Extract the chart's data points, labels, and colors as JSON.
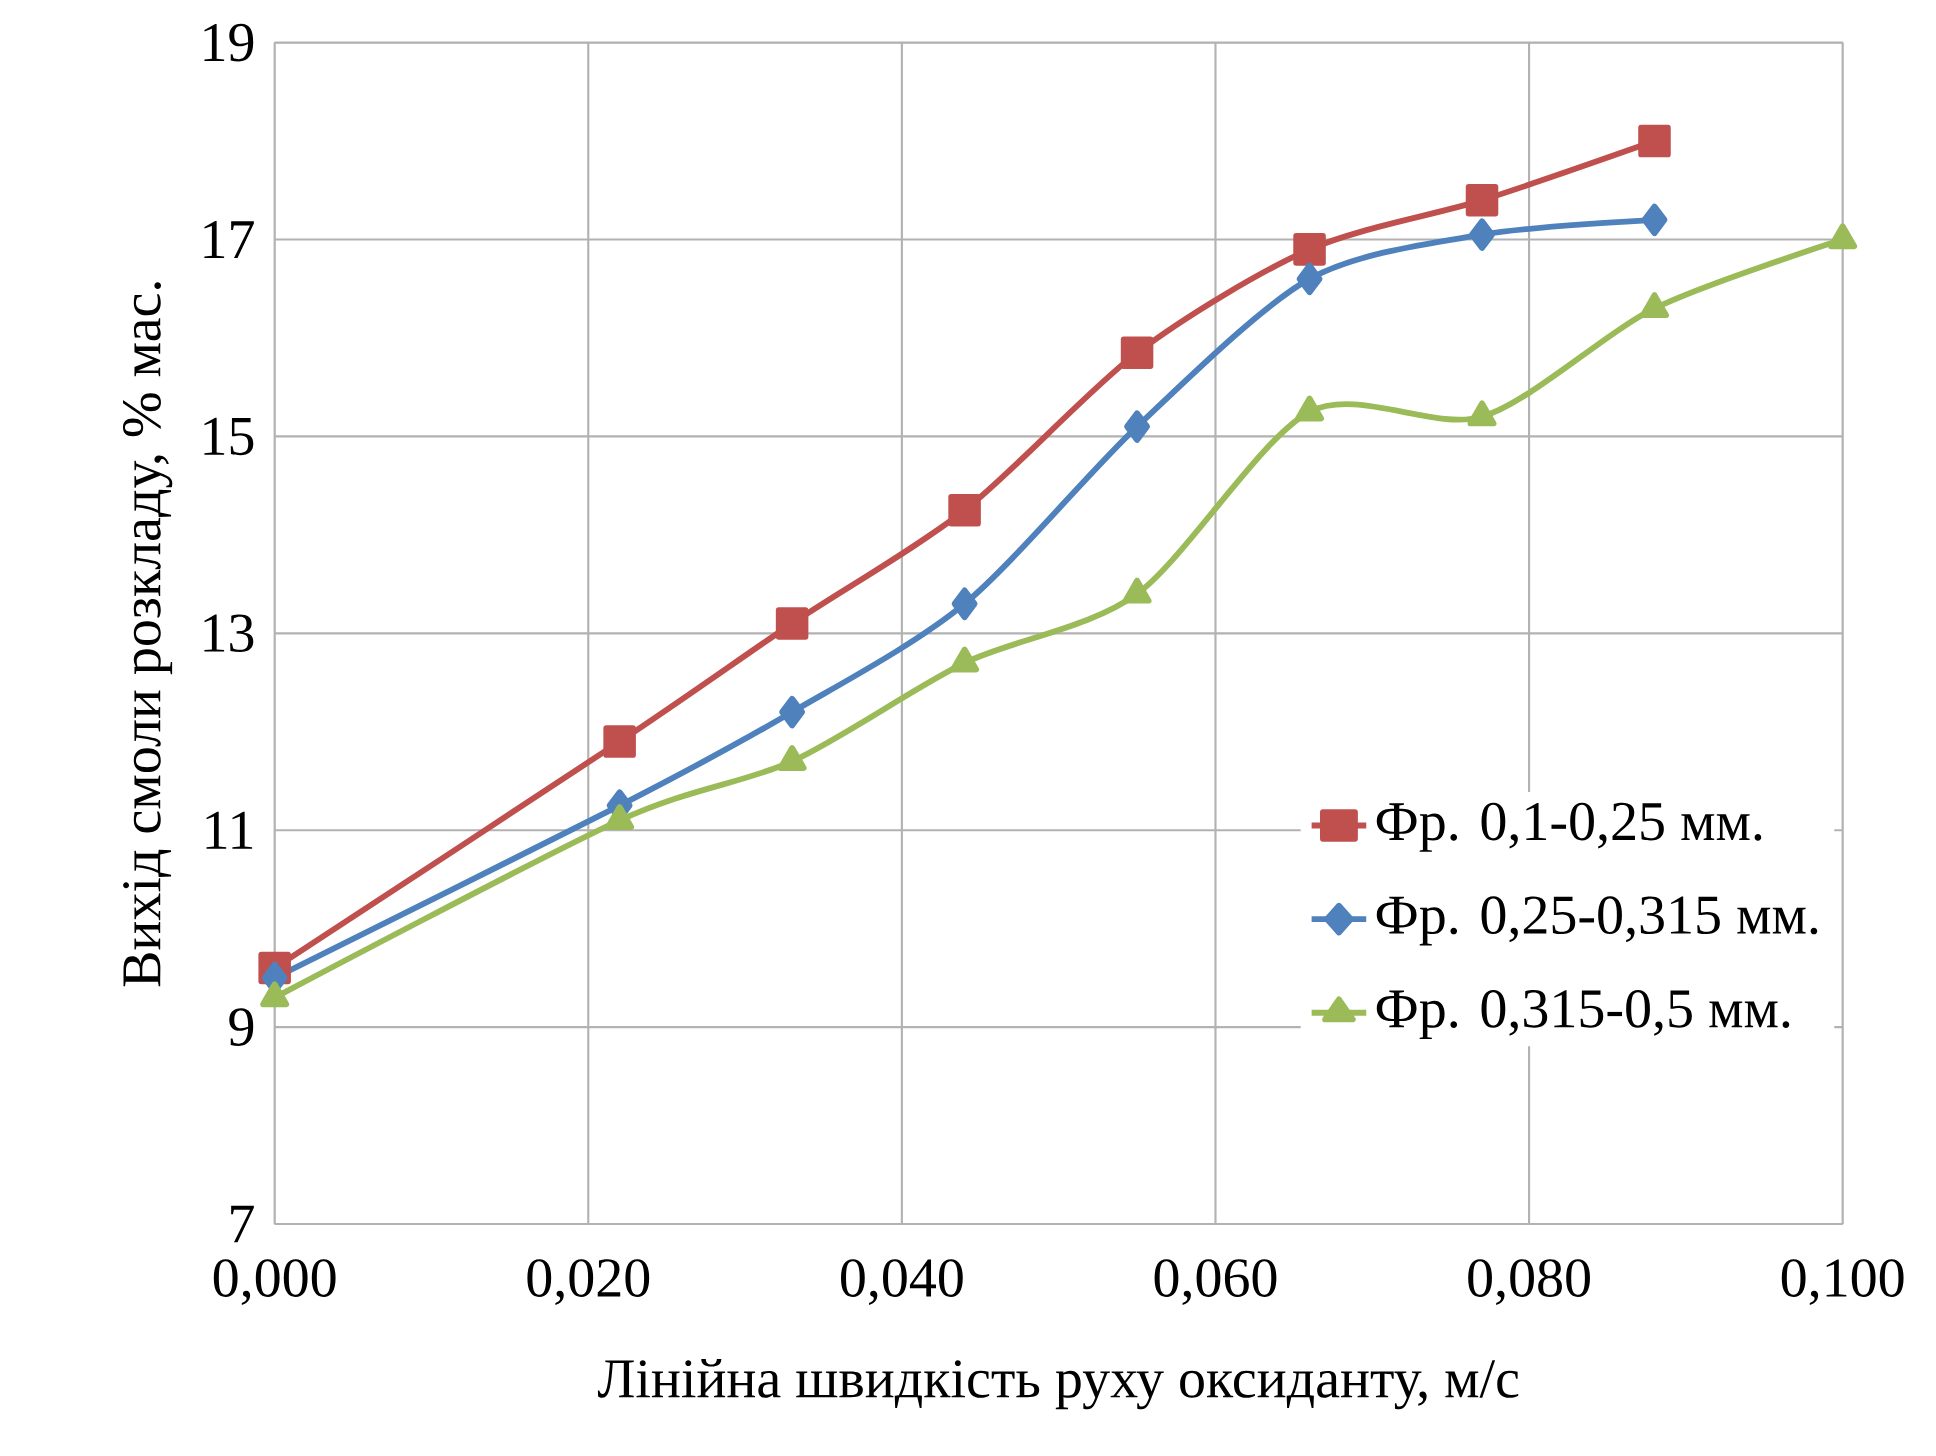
{
  "chart_data": {
    "type": "line",
    "xlabel": "Лінійна швидкість руху оксиданту, м/с",
    "ylabel": "Вихід смоли розкладу, % мас.",
    "xlim": [
      0,
      0.1
    ],
    "ylim": [
      7,
      19
    ],
    "xticks": [
      {
        "value": 0,
        "label": "0,000"
      },
      {
        "value": 0.02,
        "label": "0,020"
      },
      {
        "value": 0.04,
        "label": "0,040"
      },
      {
        "value": 0.06,
        "label": "0,060"
      },
      {
        "value": 0.08,
        "label": "0,080"
      },
      {
        "value": 0.1,
        "label": "0,100"
      }
    ],
    "yticks": [
      7,
      9,
      11,
      13,
      15,
      17,
      19
    ],
    "grid": true,
    "legend": "right",
    "series": [
      {
        "name": "Фр. 0,1-0,25  мм.",
        "color": "#c0504d",
        "marker": "square",
        "x": [
          0,
          0.022,
          0.033,
          0.044,
          0.055,
          0.066,
          0.077,
          0.088
        ],
        "values": [
          9.6,
          11.9,
          13.1,
          14.25,
          15.85,
          16.9,
          17.4,
          18.0
        ]
      },
      {
        "name": "Фр. 0,25-0,315  мм.",
        "color": "#4f81bd",
        "marker": "diamond",
        "x": [
          0,
          0.022,
          0.033,
          0.044,
          0.055,
          0.066,
          0.077,
          0.088
        ],
        "values": [
          9.5,
          11.25,
          12.2,
          13.3,
          15.1,
          16.6,
          17.05,
          17.2
        ]
      },
      {
        "name": "Фр. 0,315-0,5  мм.",
        "color": "#9bbb59",
        "marker": "triangle",
        "x": [
          0,
          0.022,
          0.033,
          0.044,
          0.055,
          0.066,
          0.077,
          0.088,
          0.1
        ],
        "values": [
          9.3,
          11.1,
          11.7,
          12.7,
          13.4,
          15.25,
          15.2,
          16.3,
          17.0
        ]
      }
    ]
  }
}
